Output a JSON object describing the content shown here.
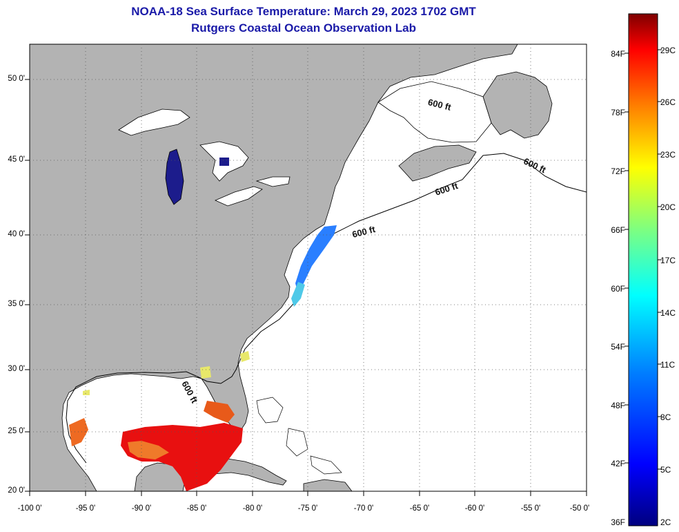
{
  "title": "NOAA-18 Sea Surface Temperature:  March 29, 2023 1702 GMT",
  "subtitle": "Rutgers Coastal Ocean Observation Lab",
  "map": {
    "lon_range": [
      -100,
      -50
    ],
    "lat_range": [
      20,
      52.5
    ],
    "lat_ticks": [
      "20 0'",
      "25 0'",
      "30 0'",
      "35 0'",
      "40 0'",
      "45 0'",
      "50 0'"
    ],
    "lon_ticks": [
      "-100 0'",
      "-95 0'",
      "-90 0'",
      "-85 0'",
      "-80 0'",
      "-75 0'",
      "-70 0'",
      "-65 0'",
      "-60 0'",
      "-55 0'",
      "-50 0'"
    ],
    "gridlines": "dotted",
    "contour_labels": [
      "600 ft",
      "600 ft",
      "600 ft",
      "600 ft",
      "600 ft"
    ],
    "land_color": "#b3b3b3",
    "ocean_color": "#ffffff"
  },
  "colorbar": {
    "fahrenheit_labels": [
      "84F",
      "78F",
      "72F",
      "66F",
      "60F",
      "54F",
      "48F",
      "42F",
      "36F"
    ],
    "celsius_labels": [
      "29C",
      "26C",
      "23C",
      "20C",
      "17C",
      "14C",
      "11C",
      "8C",
      "5C",
      "2C"
    ],
    "colors": [
      "#00007f",
      "#0000ff",
      "#007fff",
      "#00ffff",
      "#7fff7f",
      "#ffff00",
      "#ff7f00",
      "#ff0000",
      "#7f0000"
    ]
  }
}
